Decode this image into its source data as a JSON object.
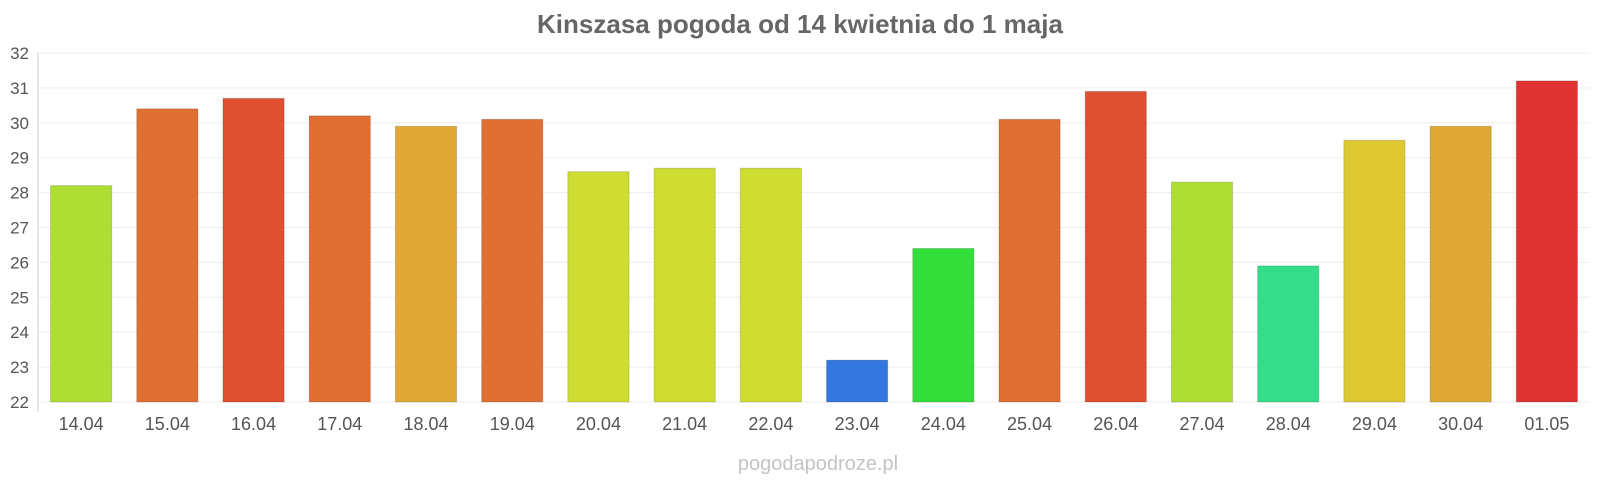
{
  "chart_data": {
    "type": "bar",
    "title": "Kinszasa pogoda od 14 kwietnia do 1 maja",
    "xlabel": "",
    "ylabel": "",
    "categories": [
      "14.04",
      "15.04",
      "16.04",
      "17.04",
      "18.04",
      "19.04",
      "20.04",
      "21.04",
      "22.04",
      "23.04",
      "24.04",
      "25.04",
      "26.04",
      "27.04",
      "28.04",
      "29.04",
      "30.04",
      "01.05"
    ],
    "values": [
      28.2,
      30.4,
      30.7,
      30.2,
      29.9,
      30.1,
      28.6,
      28.7,
      28.7,
      23.2,
      26.4,
      30.1,
      30.9,
      28.3,
      25.9,
      29.5,
      29.9,
      31.2
    ],
    "colors": [
      "#aedd33",
      "#df6f33",
      "#df5033",
      "#df6f33",
      "#dfa933",
      "#df6f33",
      "#cfdd33",
      "#cfdd33",
      "#cfdd33",
      "#3377df",
      "#33dd3a",
      "#df6f33",
      "#df5033",
      "#aedd33",
      "#33dd8a",
      "#dfc933",
      "#dfa933",
      "#df3333"
    ],
    "ylim": [
      22,
      32
    ],
    "yticks": [
      "22",
      "23",
      "24",
      "25",
      "26",
      "27",
      "28",
      "29",
      "30",
      "31",
      "32"
    ],
    "grid": true,
    "legend": "none"
  },
  "watermark": "pogodapodroze.pl"
}
